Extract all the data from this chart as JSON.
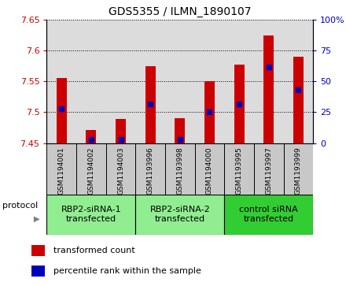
{
  "title": "GDS5355 / ILMN_1890107",
  "samples": [
    "GSM1194001",
    "GSM1194002",
    "GSM1194003",
    "GSM1193996",
    "GSM1193998",
    "GSM1194000",
    "GSM1193995",
    "GSM1193997",
    "GSM1193999"
  ],
  "transformed_counts": [
    7.556,
    7.471,
    7.489,
    7.575,
    7.49,
    7.551,
    7.578,
    7.625,
    7.59
  ],
  "percentile_ranks": [
    28,
    3,
    3,
    32,
    3,
    25,
    32,
    62,
    43
  ],
  "ylim_left": [
    7.45,
    7.65
  ],
  "ylim_right": [
    0,
    100
  ],
  "yticks_left": [
    7.45,
    7.5,
    7.55,
    7.6,
    7.65
  ],
  "yticks_right": [
    0,
    25,
    50,
    75,
    100
  ],
  "groups": [
    {
      "label": "RBP2-siRNA-1\ntransfected",
      "start": 0,
      "end": 3,
      "color": "#90EE90"
    },
    {
      "label": "RBP2-siRNA-2\ntransfected",
      "start": 3,
      "end": 6,
      "color": "#90EE90"
    },
    {
      "label": "control siRNA\ntransfected",
      "start": 6,
      "end": 9,
      "color": "#32CD32"
    }
  ],
  "bar_color": "#CC0000",
  "blue_marker_color": "#0000BB",
  "bar_width": 0.35,
  "plot_bg_color": "#DCDCDC",
  "xtick_bg_color": "#C8C8C8",
  "legend_red_label": "transformed count",
  "legend_blue_label": "percentile rank within the sample",
  "protocol_label": "protocol"
}
